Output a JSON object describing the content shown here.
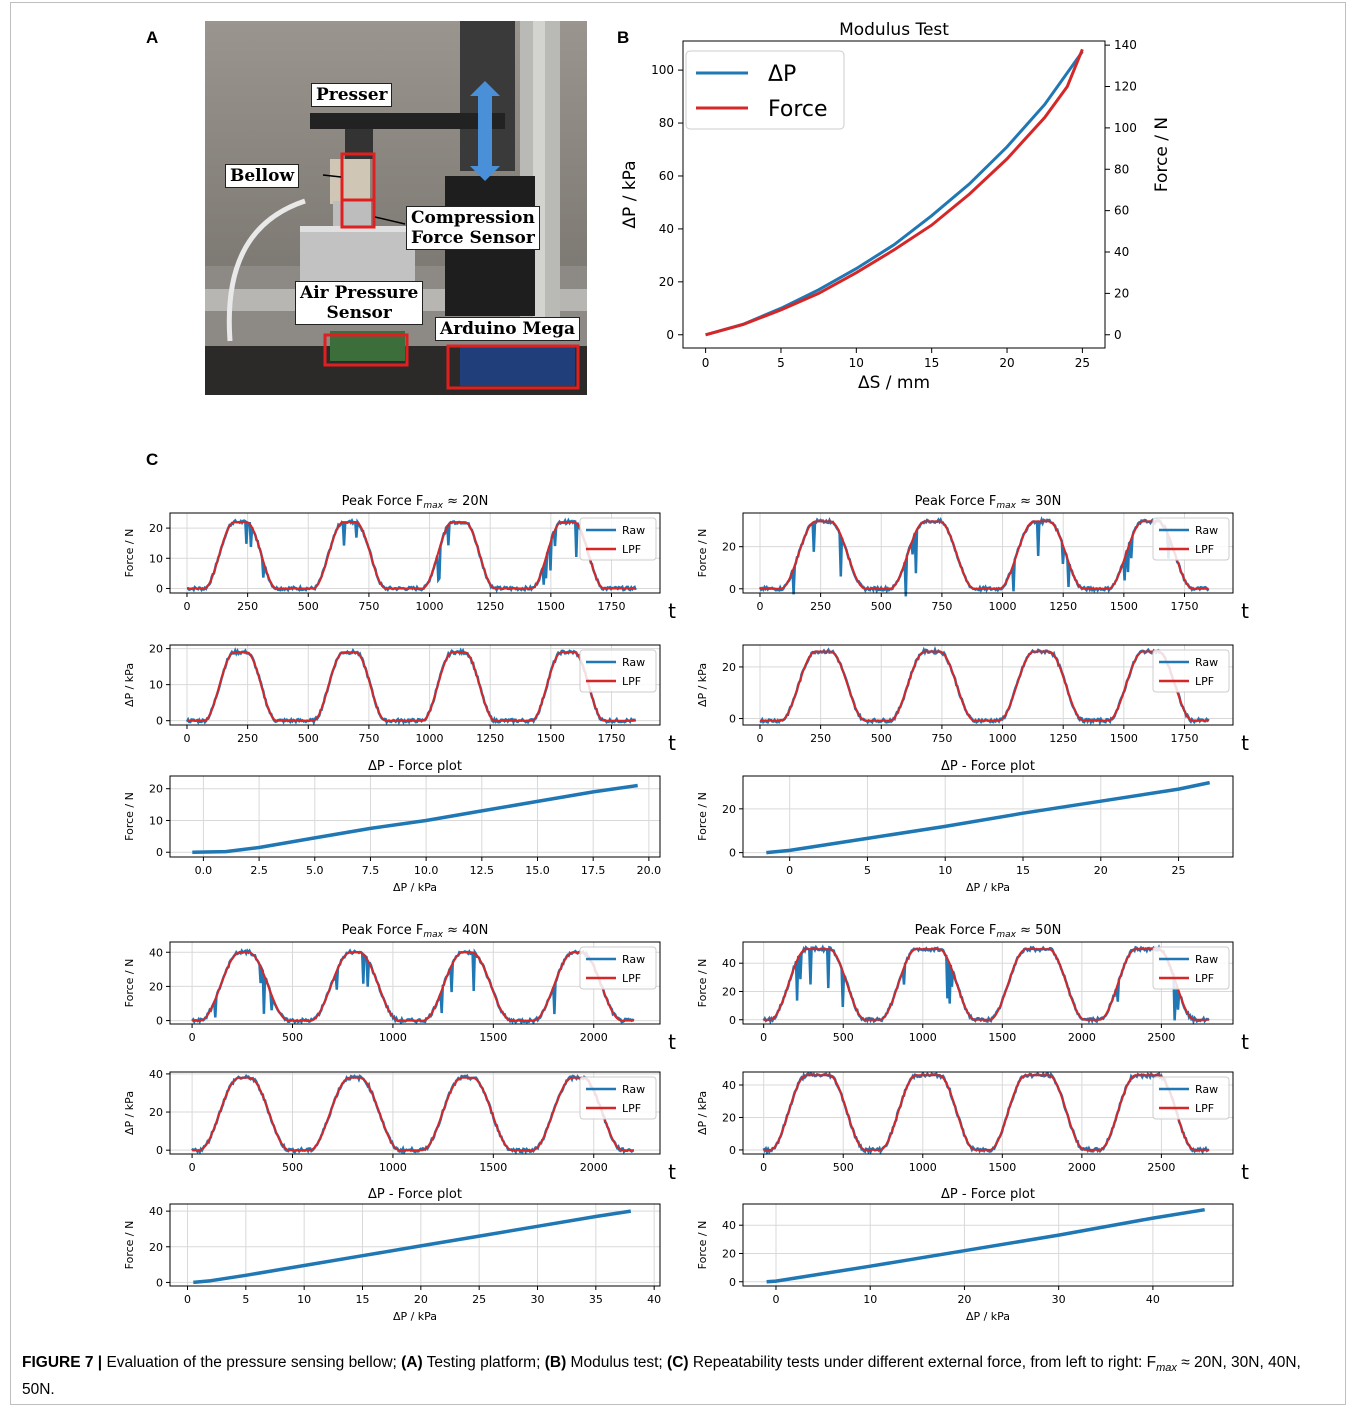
{
  "figure": {
    "caption": {
      "label": "FIGURE 7 |",
      "parts": [
        {
          "t": " Evaluation of the pressure sensing bellow; ",
          "b": false
        },
        {
          "t": "(A)",
          "b": true
        },
        {
          "t": " Testing platform; ",
          "b": false
        },
        {
          "t": "(B)",
          "b": true
        },
        {
          "t": " Modulus test; ",
          "b": false
        },
        {
          "t": "(C)",
          "b": true
        },
        {
          "t": " Repeatability tests under different external force, from left to right: F",
          "b": false
        },
        {
          "t": "max",
          "b": false,
          "sub": true
        },
        {
          "t": " ≈ 20N, 30N, 40N, 50N.",
          "b": false
        }
      ]
    }
  },
  "panel_a": {
    "letter": "A",
    "labels": {
      "presser": "Presser",
      "bellow": "Bellow",
      "compression": "Compression\nForce Sensor",
      "air": "Air Pressure\nSensor",
      "arduino": "Arduino Mega"
    }
  },
  "panel_b": {
    "letter": "B"
  },
  "panel_c": {
    "letter": "C"
  },
  "colors": {
    "blue": "#1f77b4",
    "red": "#d62728",
    "grid": "#d9d9d9"
  },
  "chart_data": [
    {
      "id": "modulus",
      "type": "line",
      "title": "Modulus Test",
      "xlabel": "ΔS / mm",
      "ylabel": "ΔP / kPa",
      "ylabel_right": "Force / N",
      "xlim": [
        -1.5,
        26.5
      ],
      "ylim": [
        -5,
        111
      ],
      "ylim_right": [
        -6.4,
        142
      ],
      "xticks": [
        0,
        5,
        10,
        15,
        20,
        25
      ],
      "yticks": [
        0,
        20,
        40,
        60,
        80,
        100
      ],
      "yticks_right": [
        0,
        20,
        40,
        60,
        80,
        100,
        120,
        140
      ],
      "grid": false,
      "legend": "top-left",
      "series": [
        {
          "name": "ΔP",
          "axis": "left",
          "color": "#1f77b4",
          "x": [
            0,
            2.5,
            5,
            7.5,
            10,
            12.5,
            15,
            17.5,
            20,
            22.5,
            25
          ],
          "y": [
            0,
            4,
            10,
            17,
            25,
            34,
            45,
            57,
            71,
            87,
            107
          ]
        },
        {
          "name": "Force",
          "axis": "right",
          "color": "#d62728",
          "x": [
            0,
            2.5,
            5,
            7.5,
            10,
            12.5,
            15,
            17.5,
            20,
            22.5,
            24,
            25
          ],
          "y": [
            0,
            5,
            12,
            20,
            30,
            41,
            53,
            68,
            85,
            105,
            120,
            138
          ]
        }
      ]
    },
    {
      "id": "f20",
      "type": "line",
      "title": "Peak Force F",
      "title_sub": "max",
      "title_end": " ≈  20N",
      "ylabel": "Force / N",
      "tlabel": "t",
      "xlim": [
        -70,
        1950
      ],
      "ylim": [
        -1.5,
        25
      ],
      "xticks": [
        0,
        250,
        500,
        750,
        1000,
        1250,
        1500,
        1750
      ],
      "yticks": [
        0,
        10,
        20
      ],
      "grid": true,
      "legend": "right",
      "series": [
        {
          "name": "Raw",
          "color": "#1f77b4"
        },
        {
          "name": "LPF",
          "color": "#d62728"
        }
      ],
      "cycle": {
        "peak": 22,
        "centers": [
          220,
          670,
          1120,
          1570
        ],
        "half": 125,
        "flat": 25,
        "end": 1850,
        "spikes": 3
      }
    },
    {
      "id": "p20",
      "type": "line",
      "title": "",
      "ylabel": "ΔP / kPa",
      "tlabel": "t",
      "xlim": [
        -70,
        1950
      ],
      "ylim": [
        -1.2,
        21
      ],
      "xticks": [
        0,
        250,
        500,
        750,
        1000,
        1250,
        1500,
        1750
      ],
      "yticks": [
        0,
        10,
        20
      ],
      "grid": true,
      "legend": "right",
      "series": [
        {
          "name": "Raw",
          "color": "#1f77b4"
        },
        {
          "name": "LPF",
          "color": "#d62728"
        }
      ],
      "cycle": {
        "peak": 19,
        "centers": [
          220,
          670,
          1120,
          1570
        ],
        "half": 125,
        "flat": 25,
        "end": 1850,
        "spikes": 0
      }
    },
    {
      "id": "s20",
      "type": "scatter",
      "title": "ΔP - Force plot",
      "xlabel": "ΔP / kPa",
      "ylabel": "Force / N",
      "xlim": [
        -1.5,
        20.5
      ],
      "ylim": [
        -1.5,
        24
      ],
      "xticks": [
        0.0,
        2.5,
        5.0,
        7.5,
        10.0,
        12.5,
        15.0,
        17.5,
        20.0
      ],
      "xtick_decimals": 1,
      "yticks": [
        0,
        10,
        20
      ],
      "grid": true,
      "series": [
        {
          "name": "",
          "color": "#1f77b4",
          "x": [
            -0.5,
            1,
            2.5,
            5,
            7.5,
            10,
            12.5,
            15,
            17.5,
            19.5
          ],
          "y": [
            0,
            0.2,
            1.5,
            4.5,
            7.5,
            10,
            13,
            16,
            19,
            21
          ]
        }
      ]
    },
    {
      "id": "f30",
      "type": "line",
      "title": "Peak Force F",
      "title_sub": "max",
      "title_end": " ≈  30N",
      "ylabel": "Force / N",
      "tlabel": "t",
      "xlim": [
        -70,
        1950
      ],
      "ylim": [
        -2,
        36
      ],
      "xticks": [
        0,
        250,
        500,
        750,
        1000,
        1250,
        1500,
        1750
      ],
      "yticks": [
        0,
        20
      ],
      "grid": true,
      "legend": "right",
      "series": [
        {
          "name": "Raw",
          "color": "#1f77b4"
        },
        {
          "name": "LPF",
          "color": "#d62728"
        }
      ],
      "cycle": {
        "peak": 32,
        "centers": [
          260,
          710,
          1160,
          1610
        ],
        "half": 145,
        "flat": 30,
        "end": 1850,
        "spikes": 2
      }
    },
    {
      "id": "p30",
      "type": "line",
      "title": "",
      "ylabel": "ΔP / kPa",
      "tlabel": "t",
      "xlim": [
        -70,
        1950
      ],
      "ylim": [
        -2.5,
        28.5
      ],
      "xticks": [
        0,
        250,
        500,
        750,
        1000,
        1250,
        1500,
        1750
      ],
      "yticks": [
        0,
        20
      ],
      "grid": true,
      "legend": "right",
      "series": [
        {
          "name": "Raw",
          "color": "#1f77b4"
        },
        {
          "name": "LPF",
          "color": "#d62728"
        }
      ],
      "cycle": {
        "peak": 26,
        "base": -0.8,
        "centers": [
          260,
          710,
          1160,
          1610
        ],
        "half": 145,
        "flat": 30,
        "end": 1850,
        "spikes": 0
      }
    },
    {
      "id": "s30",
      "type": "scatter",
      "title": "ΔP - Force plot",
      "xlabel": "ΔP / kPa",
      "ylabel": "Force / N",
      "xlim": [
        -3,
        28.5
      ],
      "ylim": [
        -2,
        35
      ],
      "xticks": [
        0,
        5,
        10,
        15,
        20,
        25
      ],
      "yticks": [
        0,
        20
      ],
      "grid": true,
      "series": [
        {
          "name": "",
          "color": "#1f77b4",
          "x": [
            -1.5,
            0,
            5,
            10,
            15,
            20,
            25,
            27
          ],
          "y": [
            0,
            1,
            6.5,
            12,
            18,
            23.5,
            29,
            32
          ]
        }
      ]
    },
    {
      "id": "f40",
      "type": "line",
      "title": "Peak Force F",
      "title_sub": "max",
      "title_end": " ≈  40N",
      "ylabel": "Force / N",
      "tlabel": "t",
      "xlim": [
        -110,
        2330
      ],
      "ylim": [
        -2,
        46
      ],
      "xticks": [
        0,
        500,
        1000,
        1500,
        2000
      ],
      "yticks": [
        0,
        20,
        40
      ],
      "grid": true,
      "legend": "right",
      "series": [
        {
          "name": "Raw",
          "color": "#1f77b4"
        },
        {
          "name": "LPF",
          "color": "#d62728"
        }
      ],
      "cycle": {
        "peak": 40,
        "centers": [
          260,
          810,
          1370,
          1920
        ],
        "half": 200,
        "flat": 20,
        "end": 2200,
        "spikes": 2
      }
    },
    {
      "id": "p40",
      "type": "line",
      "title": "",
      "ylabel": "ΔP / kPa",
      "tlabel": "t",
      "xlim": [
        -110,
        2330
      ],
      "ylim": [
        -2,
        41
      ],
      "xticks": [
        0,
        500,
        1000,
        1500,
        2000
      ],
      "yticks": [
        0,
        20,
        40
      ],
      "grid": true,
      "legend": "right",
      "series": [
        {
          "name": "Raw",
          "color": "#1f77b4"
        },
        {
          "name": "LPF",
          "color": "#d62728"
        }
      ],
      "cycle": {
        "peak": 38,
        "centers": [
          260,
          810,
          1370,
          1920
        ],
        "half": 200,
        "flat": 25,
        "end": 2200,
        "spikes": 0
      }
    },
    {
      "id": "s40",
      "type": "scatter",
      "title": "ΔP - Force plot",
      "xlabel": "ΔP / kPa",
      "ylabel": "Force / N",
      "xlim": [
        -1.5,
        40.5
      ],
      "ylim": [
        -2,
        44
      ],
      "xticks": [
        0,
        5,
        10,
        15,
        20,
        25,
        30,
        35,
        40
      ],
      "yticks": [
        0,
        20,
        40
      ],
      "grid": true,
      "series": [
        {
          "name": "",
          "color": "#1f77b4",
          "x": [
            0.5,
            2,
            5,
            10,
            15,
            20,
            25,
            30,
            35,
            38
          ],
          "y": [
            0,
            1,
            4,
            9.5,
            15,
            20.5,
            26,
            31.5,
            37,
            40
          ]
        }
      ]
    },
    {
      "id": "f50",
      "type": "line",
      "title": "Peak Force F",
      "title_sub": "max",
      "title_end": " ≈  50N",
      "ylabel": "Force / N",
      "tlabel": "t",
      "xlim": [
        -130,
        2950
      ],
      "ylim": [
        -3,
        55
      ],
      "xticks": [
        0,
        500,
        1000,
        1500,
        2000,
        2500
      ],
      "yticks": [
        0,
        20,
        40
      ],
      "grid": true,
      "legend": "right",
      "series": [
        {
          "name": "Raw",
          "color": "#1f77b4"
        },
        {
          "name": "LPF",
          "color": "#d62728"
        }
      ],
      "cycle": {
        "peak": 50,
        "centers": [
          340,
          1030,
          1720,
          2410
        ],
        "half": 230,
        "flat": 70,
        "end": 2800,
        "spikes": 3
      }
    },
    {
      "id": "p50",
      "type": "line",
      "title": "",
      "ylabel": "ΔP / kPa",
      "tlabel": "t",
      "xlim": [
        -130,
        2950
      ],
      "ylim": [
        -2.5,
        48
      ],
      "xticks": [
        0,
        500,
        1000,
        1500,
        2000,
        2500
      ],
      "yticks": [
        0,
        20,
        40
      ],
      "grid": true,
      "legend": "right",
      "series": [
        {
          "name": "Raw",
          "color": "#1f77b4"
        },
        {
          "name": "LPF",
          "color": "#d62728"
        }
      ],
      "cycle": {
        "peak": 46,
        "centers": [
          340,
          1030,
          1720,
          2410
        ],
        "half": 230,
        "flat": 70,
        "end": 2800,
        "spikes": 0
      }
    },
    {
      "id": "s50",
      "type": "scatter",
      "title": "ΔP - Force plot",
      "xlabel": "ΔP / kPa",
      "ylabel": "Force / N",
      "xlim": [
        -3.5,
        48.5
      ],
      "ylim": [
        -3,
        55
      ],
      "xticks": [
        0,
        10,
        20,
        30,
        40
      ],
      "yticks": [
        0,
        20,
        40
      ],
      "grid": true,
      "series": [
        {
          "name": "",
          "color": "#1f77b4",
          "x": [
            -1,
            0,
            10,
            20,
            30,
            40,
            45.5
          ],
          "y": [
            0,
            0.5,
            11,
            22,
            33,
            45,
            51
          ]
        }
      ]
    }
  ]
}
